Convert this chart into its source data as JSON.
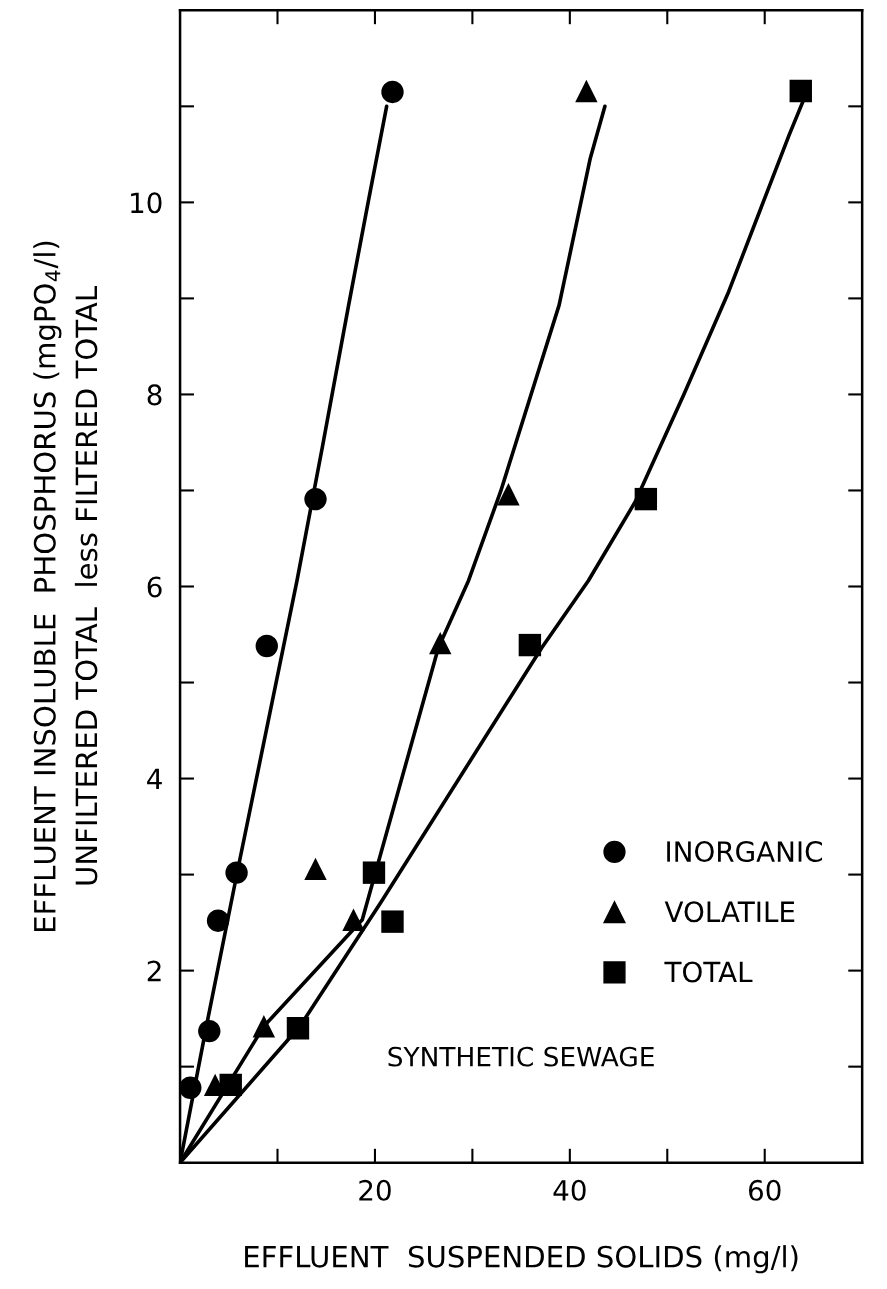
{
  "chart_data": {
    "type": "scatter",
    "xlabel": "EFFLUENT  SUSPENDED SOLIDS (mg/l)",
    "ylabel": "EFFLUENT INSOLUBLE  PHOSPHORUS (mgPO$_{4}$/l)\nUNFILTERED TOTAL  less FILTERED TOTAL",
    "xlim": [
      0,
      70
    ],
    "ylim": [
      0,
      12
    ],
    "xticks": [
      {
        "value": 10,
        "label": null
      },
      20,
      {
        "value": 30,
        "label": null
      },
      40,
      {
        "value": 50,
        "label": null
      },
      60
    ],
    "yticks": [
      {
        "value": 1,
        "label": null
      },
      2,
      {
        "value": 3,
        "label": null
      },
      4,
      {
        "value": 5,
        "label": null
      },
      6,
      {
        "value": 7,
        "label": null
      },
      8,
      {
        "value": 9,
        "label": null
      },
      10,
      {
        "value": 11,
        "label": null
      }
    ],
    "grid": false,
    "legend": "lower right",
    "annotations": [
      "SYNTHETIC SEWAGE"
    ],
    "series": [
      {
        "name": "INORGANIC",
        "marker": "circle",
        "color": "#000000",
        "x": [
          1.05,
          3.0,
          3.9,
          5.8,
          8.9,
          13.9,
          21.8
        ],
        "values": [
          0.78,
          1.37,
          2.52,
          3.02,
          5.38,
          6.91,
          11.15
        ]
      },
      {
        "name": "VOLATILE",
        "marker": "triangle",
        "color": "#000000",
        "x": [
          3.6,
          8.6,
          17.8,
          13.9,
          26.7,
          33.7,
          41.7
        ],
        "values": [
          0.81,
          1.42,
          2.53,
          3.06,
          5.41,
          6.96,
          11.16
        ]
      },
      {
        "name": "TOTAL",
        "marker": "square",
        "color": "#000000",
        "x": [
          5.2,
          12.1,
          21.8,
          19.9,
          35.9,
          47.8,
          63.7
        ],
        "values": [
          0.81,
          1.4,
          2.51,
          3.02,
          5.39,
          6.91,
          11.16
        ]
      },
      {
        "type": "line",
        "marker": "none",
        "line_style": "solid",
        "color": "#000000",
        "x": [
          0,
          2.7,
          5.9,
          12.0,
          14.6,
          17.3,
          19.3,
          21.2
        ],
        "values": [
          0,
          1.42,
          3.04,
          6.06,
          7.45,
          8.93,
          10.0,
          11.0
        ]
      },
      {
        "type": "line",
        "marker": "none",
        "line_style": "solid",
        "color": "#000000",
        "x": [
          0,
          8.6,
          18.7,
          26.5,
          29.6,
          32.9,
          38.9,
          42.1,
          43.6
        ],
        "values": [
          0,
          1.42,
          2.53,
          5.36,
          6.06,
          6.99,
          8.93,
          10.46,
          11.0
        ]
      },
      {
        "type": "line",
        "marker": "none",
        "line_style": "solid",
        "color": "#000000",
        "x": [
          0,
          12.3,
          20.6,
          37.1,
          41.9,
          46.7,
          51.7,
          56.3,
          62.5,
          64.0
        ],
        "values": [
          0,
          1.42,
          2.71,
          5.36,
          6.06,
          6.88,
          8.0,
          9.07,
          10.7,
          11.07
        ]
      }
    ]
  }
}
